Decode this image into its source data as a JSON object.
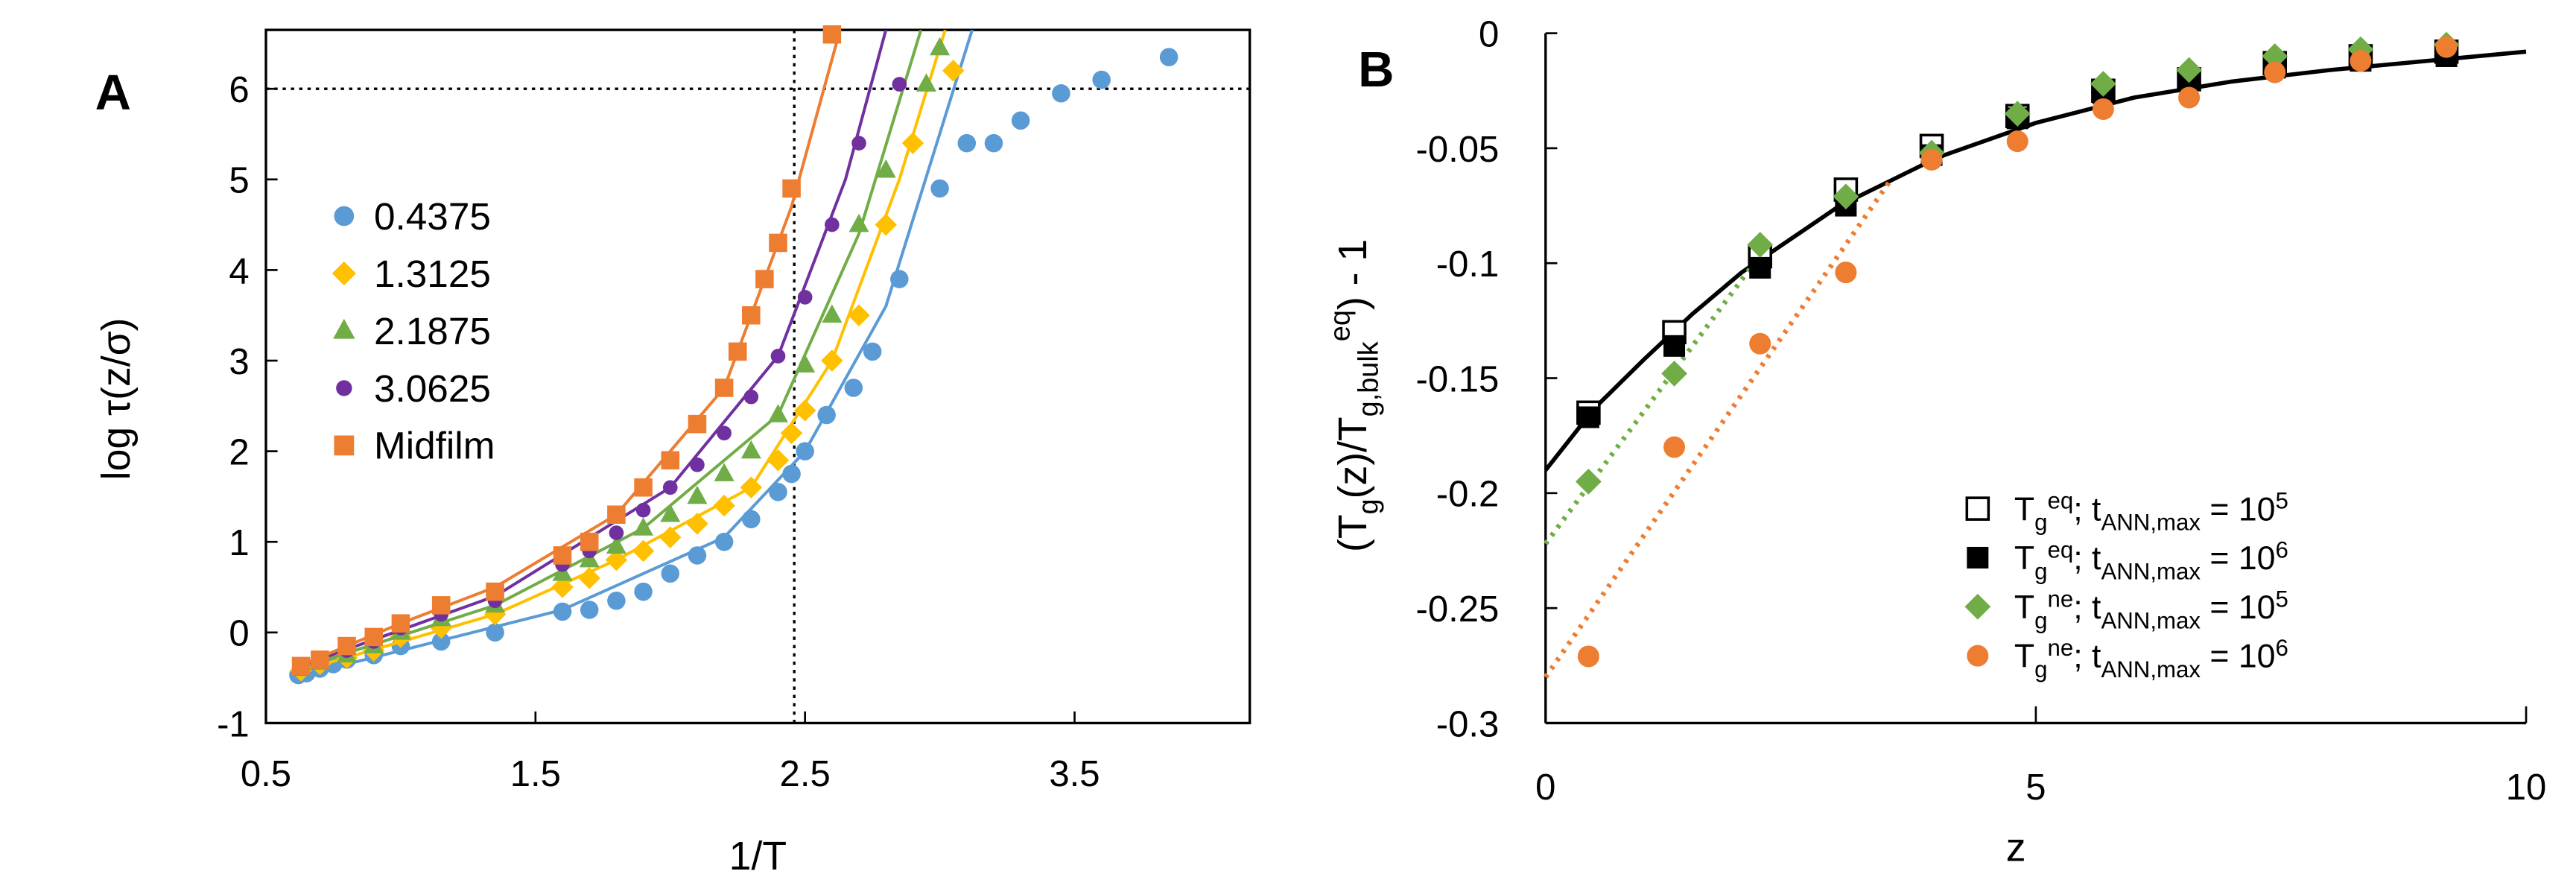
{
  "chart_data": [
    {
      "type": "scatter",
      "panel_label": "A",
      "xlabel": "1/T",
      "ylabel": "log τ(z/σ)",
      "xlim": [
        0.5,
        4.15
      ],
      "ylim": [
        -1,
        6.65
      ],
      "xticks": [
        0.5,
        1.5,
        2.5,
        3.5
      ],
      "yticks": [
        -1,
        0,
        1,
        2,
        3,
        4,
        5,
        6
      ],
      "reference_lines": {
        "x": 2.46,
        "y": 6
      },
      "series": [
        {
          "name": "0.4375",
          "color": "#5b9bd5",
          "marker": "circle",
          "x": [
            0.62,
            0.65,
            0.7,
            0.75,
            0.8,
            0.9,
            1.0,
            1.15,
            1.35,
            1.6,
            1.7,
            1.8,
            1.9,
            2.0,
            2.1,
            2.2,
            2.3,
            2.4,
            2.45,
            2.5,
            2.58,
            2.68,
            2.75,
            2.85,
            3.0,
            3.1,
            3.2,
            3.3,
            3.45,
            3.6,
            3.85
          ],
          "values": [
            -0.47,
            -0.45,
            -0.4,
            -0.35,
            -0.3,
            -0.25,
            -0.15,
            -0.1,
            0.0,
            0.23,
            0.25,
            0.35,
            0.45,
            0.65,
            0.85,
            1.0,
            1.25,
            1.55,
            1.75,
            2.0,
            2.4,
            2.7,
            3.1,
            3.9,
            4.9,
            5.4,
            5.4,
            5.65,
            5.95,
            6.1,
            6.35
          ],
          "fit_x": [
            0.6,
            1.0,
            1.6,
            2.2,
            2.5,
            2.8,
            3.12
          ],
          "fit_values": [
            -0.5,
            -0.2,
            0.25,
            1.05,
            2.0,
            3.6,
            6.65
          ]
        },
        {
          "name": "1.3125",
          "color": "#ffc000",
          "marker": "diamond",
          "x": [
            0.63,
            0.7,
            0.8,
            0.9,
            1.0,
            1.15,
            1.35,
            1.6,
            1.7,
            1.8,
            1.9,
            2.0,
            2.1,
            2.2,
            2.3,
            2.4,
            2.45,
            2.5,
            2.6,
            2.7,
            2.8,
            2.9,
            3.05
          ],
          "values": [
            -0.42,
            -0.35,
            -0.28,
            -0.2,
            -0.05,
            0.05,
            0.2,
            0.5,
            0.6,
            0.8,
            0.9,
            1.05,
            1.2,
            1.4,
            1.6,
            1.9,
            2.2,
            2.45,
            3.0,
            3.5,
            4.5,
            5.4,
            6.2
          ],
          "fit_x": [
            0.6,
            1.35,
            1.8,
            2.3,
            2.6,
            2.85,
            3.02
          ],
          "fit_values": [
            -0.45,
            0.2,
            0.8,
            1.6,
            3.0,
            5.0,
            6.65
          ]
        },
        {
          "name": "2.1875",
          "color": "#70ad47",
          "marker": "triangle",
          "x": [
            0.63,
            0.7,
            0.8,
            0.9,
            1.0,
            1.15,
            1.35,
            1.6,
            1.7,
            1.8,
            1.9,
            2.0,
            2.1,
            2.2,
            2.3,
            2.4,
            2.5,
            2.6,
            2.7,
            2.8,
            2.95,
            3.0
          ],
          "values": [
            -0.4,
            -0.33,
            -0.25,
            -0.15,
            0.0,
            0.15,
            0.3,
            0.65,
            0.8,
            0.95,
            1.15,
            1.3,
            1.5,
            1.75,
            2.0,
            2.4,
            2.95,
            3.5,
            4.5,
            5.1,
            6.05,
            6.45
          ],
          "fit_x": [
            0.6,
            1.35,
            1.9,
            2.4,
            2.7,
            2.93
          ],
          "fit_values": [
            -0.42,
            0.3,
            1.15,
            2.4,
            4.4,
            6.65
          ]
        },
        {
          "name": "3.0625",
          "color": "#7030a0",
          "marker": "dot",
          "x": [
            0.63,
            0.7,
            0.8,
            0.9,
            1.0,
            1.15,
            1.35,
            1.6,
            1.7,
            1.8,
            1.9,
            2.0,
            2.1,
            2.2,
            2.3,
            2.4,
            2.5,
            2.6,
            2.7,
            2.85
          ],
          "values": [
            -0.38,
            -0.3,
            -0.2,
            -0.1,
            0.05,
            0.2,
            0.35,
            0.75,
            0.9,
            1.1,
            1.35,
            1.6,
            1.85,
            2.2,
            2.6,
            3.05,
            3.7,
            4.5,
            5.4,
            6.05
          ],
          "fit_x": [
            0.6,
            1.35,
            2.0,
            2.4,
            2.65,
            2.8
          ],
          "fit_values": [
            -0.4,
            0.4,
            1.6,
            3.05,
            5.0,
            6.65
          ]
        },
        {
          "name": "Midfilm",
          "color": "#ed7d31",
          "marker": "square",
          "x": [
            0.63,
            0.7,
            0.8,
            0.9,
            1.0,
            1.15,
            1.35,
            1.6,
            1.7,
            1.8,
            1.9,
            2.0,
            2.1,
            2.2,
            2.25,
            2.3,
            2.35,
            2.4,
            2.45,
            2.6
          ],
          "values": [
            -0.37,
            -0.3,
            -0.15,
            -0.05,
            0.1,
            0.3,
            0.45,
            0.85,
            1.0,
            1.3,
            1.6,
            1.9,
            2.3,
            2.7,
            3.1,
            3.5,
            3.9,
            4.3,
            4.9,
            6.6
          ],
          "fit_x": [
            0.6,
            1.0,
            1.35,
            1.8,
            2.2,
            2.45,
            2.63
          ],
          "fit_values": [
            -0.4,
            0.1,
            0.5,
            1.3,
            2.7,
            4.7,
            6.65
          ]
        }
      ]
    },
    {
      "type": "scatter",
      "panel_label": "B",
      "xlabel": "z",
      "ylabel": [
        "(T",
        "g",
        "(z)/T",
        "g,bulk",
        "eq",
        ") - 1"
      ],
      "xlim": [
        0,
        10
      ],
      "ylim": [
        -0.3,
        0
      ],
      "xticks": [
        0,
        5,
        10
      ],
      "yticks": [
        -0.3,
        -0.25,
        -0.2,
        -0.15,
        -0.1,
        -0.05,
        0
      ],
      "x": [
        0.4375,
        1.3125,
        2.1875,
        3.0625,
        3.9375,
        4.8125,
        5.6875,
        6.5625,
        7.4375,
        8.3125,
        9.1875
      ],
      "series": [
        {
          "name": [
            "T",
            "g",
            "eq",
            "; t",
            "ANN,max",
            " = 10",
            "5"
          ],
          "color": "#000000",
          "marker": "open-square",
          "values": [
            -0.165,
            -0.13,
            -0.097,
            -0.068,
            -0.049,
            -0.036,
            -0.025,
            -0.02,
            -0.013,
            -0.01,
            -0.008
          ]
        },
        {
          "name": [
            "T",
            "g",
            "eq",
            "; t",
            "ANN,max",
            " = 10",
            "6"
          ],
          "color": "#000000",
          "marker": "square",
          "values": [
            -0.167,
            -0.136,
            -0.102,
            -0.075,
            -0.053,
            -0.037,
            -0.026,
            -0.02,
            -0.015,
            -0.012,
            -0.01
          ]
        },
        {
          "name": [
            "T",
            "g",
            "ne",
            "; t",
            "ANN,max",
            " = 10",
            "5"
          ],
          "color": "#70ad47",
          "marker": "diamond",
          "values": [
            -0.195,
            -0.148,
            -0.092,
            -0.071,
            -0.052,
            -0.035,
            -0.022,
            -0.016,
            -0.01,
            -0.007,
            -0.005
          ]
        },
        {
          "name": [
            "T",
            "g",
            "ne",
            "; t",
            "ANN,max",
            " = 10",
            "6"
          ],
          "color": "#ed7d31",
          "marker": "circle",
          "values": [
            -0.271,
            -0.18,
            -0.135,
            -0.104,
            -0.055,
            -0.047,
            -0.033,
            -0.028,
            -0.017,
            -0.012,
            -0.006
          ]
        }
      ],
      "fits": [
        {
          "color": "#000000",
          "style": "solid",
          "x": [
            0,
            0.5,
            1,
            1.5,
            2,
            3,
            4,
            5,
            6,
            7,
            8,
            9,
            10
          ],
          "values": [
            -0.19,
            -0.163,
            -0.142,
            -0.122,
            -0.104,
            -0.075,
            -0.054,
            -0.039,
            -0.028,
            -0.021,
            -0.016,
            -0.012,
            -0.008
          ]
        },
        {
          "color": "#70ad47",
          "style": "dotted",
          "x": [
            0,
            2.3
          ],
          "values": [
            -0.222,
            -0.09
          ]
        },
        {
          "color": "#ed7d31",
          "style": "dotted",
          "x": [
            0,
            3.5
          ],
          "values": [
            -0.28,
            -0.065
          ]
        }
      ]
    }
  ]
}
